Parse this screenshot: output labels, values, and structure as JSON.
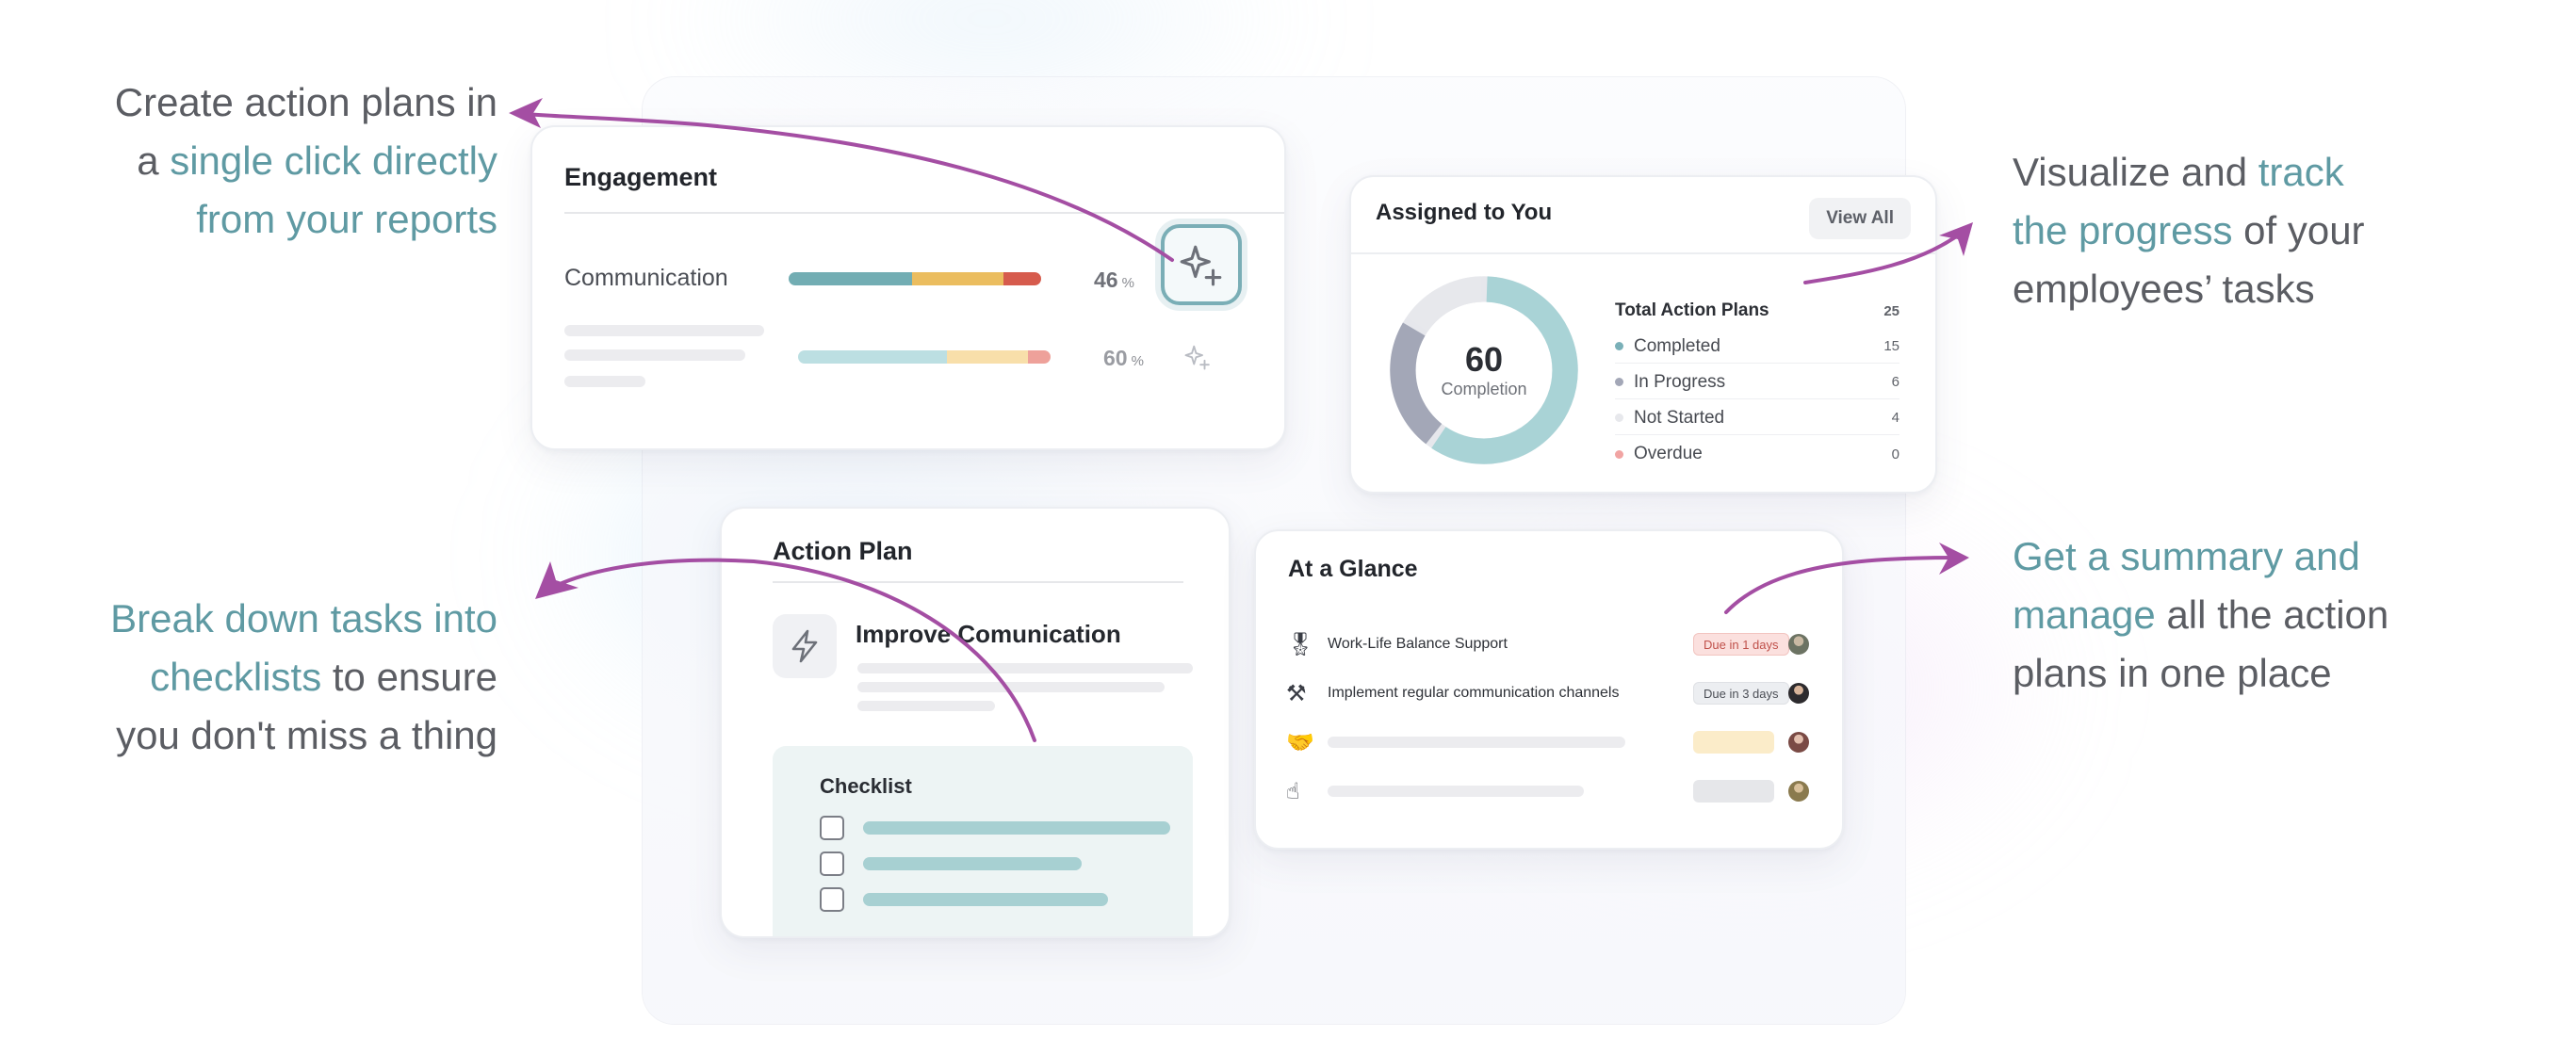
{
  "callouts": {
    "top_left": {
      "line1": "Create action plans in",
      "line2_prefix": "a ",
      "line2_hl": "single click directly",
      "line3_hl": "from your reports"
    },
    "bottom_left": {
      "line1_hl": "Break down tasks into",
      "line2_hl": "checklists",
      "line2_rest": " to ensure",
      "line3": "you don't miss a thing"
    },
    "top_right": {
      "line1_prefix": "Visualize and ",
      "line1_hl": "track",
      "line2_hl": "the progress",
      "line2_rest": " of your",
      "line3": "employees’ tasks"
    },
    "bottom_right": {
      "line1_hl": "Get a summary and",
      "line2_hl": "manage",
      "line2_rest": " all the action",
      "line3": "plans in one place"
    }
  },
  "engagement": {
    "title": "Engagement",
    "row1": {
      "label": "Communication",
      "percent": "46",
      "unit": "%"
    },
    "row2": {
      "percent": "60",
      "unit": "%"
    }
  },
  "assigned": {
    "title": "Assigned to You",
    "view_all": "View All",
    "donut": {
      "value": "60",
      "label": "Completion"
    },
    "total": {
      "label": "Total Action Plans",
      "value": "25"
    },
    "stats": [
      {
        "label": "Completed",
        "value": "15",
        "color": "#7ab0b8"
      },
      {
        "label": "In Progress",
        "value": "6",
        "color": "#a3a7b7"
      },
      {
        "label": "Not Started",
        "value": "4",
        "color": "#e7e8ec"
      },
      {
        "label": "Overdue",
        "value": "0",
        "color": "#f1a4a3"
      }
    ]
  },
  "action_plan": {
    "title": "Action Plan",
    "plan_name": "Improve Comunication",
    "checklist_title": "Checklist"
  },
  "glance": {
    "title": "At a Glance",
    "rows": [
      {
        "emoji": "🎖",
        "name": "Work-Life Balance Support",
        "badge": "Due in 1 days",
        "badge_color": "#fbe0de",
        "badge_text": "#c0514b"
      },
      {
        "emoji": "⚒",
        "name": "Implement regular communication channels",
        "badge": "Due in 3 days",
        "badge_color": "#eceef1",
        "badge_text": "#4c4f56"
      },
      {
        "emoji": "🤝",
        "name": "",
        "badge": "",
        "badge_color": "#fbecc9",
        "badge_text": "#4c4f56"
      },
      {
        "emoji": "☝",
        "name": "",
        "badge": "",
        "badge_color": "#e6e7ea",
        "badge_text": "#4c4f56"
      }
    ]
  },
  "colors": {
    "accent": "#5f9aa3",
    "arrow": "#a44ea3",
    "teal": "#72adb3",
    "amber": "#ebbd5f",
    "red": "#d65b4d"
  }
}
